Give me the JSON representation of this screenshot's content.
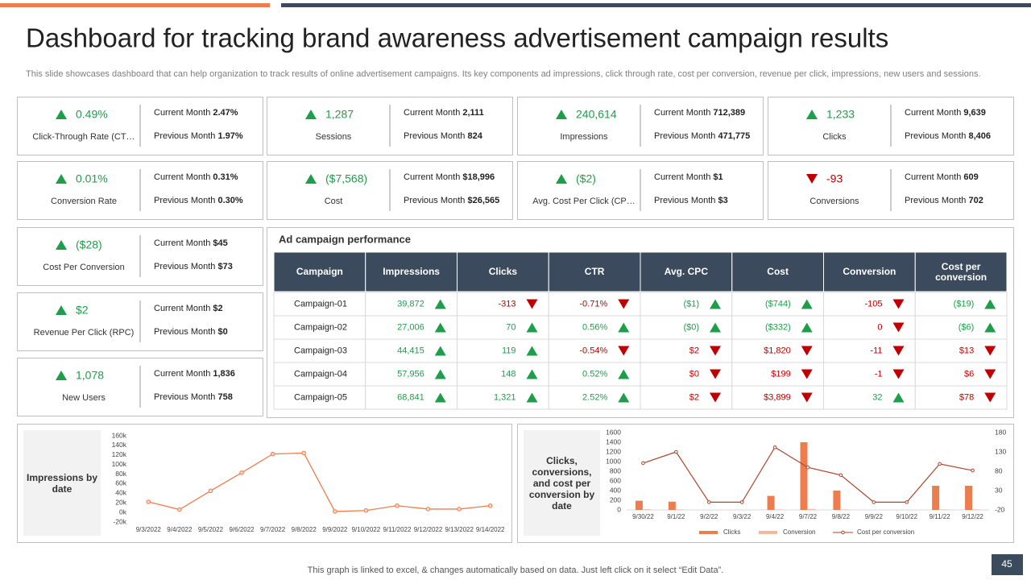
{
  "header": {
    "title": "Dashboard for tracking brand awareness advertisement campaign results",
    "subtitle": "This slide showcases dashboard that can help organization to track results of online advertisement campaigns. Its key components ad impressions, click through rate, cost per conversion, revenue per click, impressions, new users and sessions."
  },
  "kpi_labels": {
    "current": "Current Month",
    "previous": "Previous Month"
  },
  "colors": {
    "up": "#1e9e4a",
    "down": "#c00000"
  },
  "kpis": [
    {
      "value": "0.49%",
      "trend": "up",
      "label": "Click-Through Rate (CT…",
      "current": "2.47%",
      "previous": "1.97%"
    },
    {
      "value": "1,287",
      "trend": "up",
      "label": "Sessions",
      "current": "2,111",
      "previous": "824"
    },
    {
      "value": "240,614",
      "trend": "up",
      "label": "Impressions",
      "current": "712,389",
      "previous": "471,775"
    },
    {
      "value": "1,233",
      "trend": "up",
      "label": "Clicks",
      "current": "9,639",
      "previous": "8,406"
    },
    {
      "value": "0.01%",
      "trend": "up",
      "label": "Conversion Rate",
      "current": "0.31%",
      "previous": "0.30%"
    },
    {
      "value": "($7,568)",
      "trend": "up",
      "label": "Cost",
      "current": "$18,996",
      "previous": "$26,565"
    },
    {
      "value": "($2)",
      "trend": "up",
      "label": "Avg. Cost Per Click (CP…",
      "current": "$1",
      "previous": "$3"
    },
    {
      "value": "-93",
      "trend": "down",
      "label": "Conversions",
      "current": "609",
      "previous": "702"
    },
    {
      "value": "($28)",
      "trend": "up",
      "label": "Cost Per Conversion",
      "current": "$45",
      "previous": "$73"
    },
    {
      "value": "$2",
      "trend": "up",
      "label": "Revenue Per Click (RPC)",
      "current": "$2",
      "previous": "$0"
    },
    {
      "value": "1,078",
      "trend": "up",
      "label": "New Users",
      "current": "1,836",
      "previous": "758"
    }
  ],
  "table": {
    "title": "Ad campaign performance",
    "columns": [
      "Campaign",
      "Impressions",
      "Clicks",
      "CTR",
      "Avg. CPC",
      "Cost",
      "Conversion",
      "Cost per conversion"
    ],
    "rows": [
      {
        "campaign": "Campaign-01",
        "cells": [
          {
            "text": "39,872",
            "trend": "up"
          },
          {
            "text": "-313",
            "trend": "down"
          },
          {
            "text": "-0.71%",
            "trend": "down"
          },
          {
            "text": "($1)",
            "trend": "up"
          },
          {
            "text": "($744)",
            "trend": "up"
          },
          {
            "text": "-105",
            "trend": "down"
          },
          {
            "text": "($19)",
            "trend": "up"
          }
        ]
      },
      {
        "campaign": "Campaign-02",
        "cells": [
          {
            "text": "27,006",
            "trend": "up"
          },
          {
            "text": "70",
            "trend": "up"
          },
          {
            "text": "0.56%",
            "trend": "up"
          },
          {
            "text": "($0)",
            "trend": "up"
          },
          {
            "text": "($332)",
            "trend": "up"
          },
          {
            "text": "0",
            "trend": "down"
          },
          {
            "text": "($6)",
            "trend": "up"
          }
        ]
      },
      {
        "campaign": "Campaign-03",
        "cells": [
          {
            "text": "44,415",
            "trend": "up"
          },
          {
            "text": "119",
            "trend": "up"
          },
          {
            "text": "-0.54%",
            "trend": "down"
          },
          {
            "text": "$2",
            "trend": "down"
          },
          {
            "text": "$1,820",
            "trend": "down"
          },
          {
            "text": "-11",
            "trend": "down"
          },
          {
            "text": "$13",
            "trend": "down"
          }
        ]
      },
      {
        "campaign": "Campaign-04",
        "cells": [
          {
            "text": "57,956",
            "trend": "up"
          },
          {
            "text": "148",
            "trend": "up"
          },
          {
            "text": "0.52%",
            "trend": "up"
          },
          {
            "text": "$0",
            "trend": "down"
          },
          {
            "text": "$199",
            "trend": "down"
          },
          {
            "text": "-1",
            "trend": "down"
          },
          {
            "text": "$6",
            "trend": "down"
          }
        ]
      },
      {
        "campaign": "Campaign-05",
        "cells": [
          {
            "text": "68,841",
            "trend": "up"
          },
          {
            "text": "1,321",
            "trend": "up"
          },
          {
            "text": "2.52%",
            "trend": "up"
          },
          {
            "text": "$2",
            "trend": "down"
          },
          {
            "text": "$3,899",
            "trend": "down"
          },
          {
            "text": "32",
            "trend": "up"
          },
          {
            "text": "$78",
            "trend": "down"
          }
        ]
      }
    ]
  },
  "chart_data": [
    {
      "type": "line",
      "title": "Impressions by date",
      "color": "#ed7d4f",
      "categories": [
        "9/3/2022",
        "9/4/2022",
        "9/5/2022",
        "9/6/2022",
        "9/7/2022",
        "9/8/2022",
        "9/9/2022",
        "9/10/2022",
        "9/11/2022",
        "9/12/2022",
        "9/13/2022",
        "9/14/2022"
      ],
      "values": [
        22000,
        6000,
        45000,
        83000,
        122000,
        124000,
        2000,
        4000,
        14000,
        7000,
        7000,
        14000
      ],
      "ylim": [
        -20000,
        160000
      ],
      "yticks": [
        {
          "value": -20000,
          "label": "-20k"
        },
        {
          "value": 0,
          "label": "0k"
        },
        {
          "value": 20000,
          "label": "20k"
        },
        {
          "value": 40000,
          "label": "40k"
        },
        {
          "value": 60000,
          "label": "60k"
        },
        {
          "value": 80000,
          "label": "80k"
        },
        {
          "value": 100000,
          "label": "100k"
        },
        {
          "value": 120000,
          "label": "120k"
        },
        {
          "value": 140000,
          "label": "140k"
        },
        {
          "value": 160000,
          "label": "160k"
        }
      ]
    },
    {
      "type": "combo",
      "title": "Clicks, conversions, and cost per conversion by date",
      "categories": [
        "9/30/22",
        "9/1/22",
        "9/2/22",
        "9/3/22",
        "9/4/22",
        "9/7/22",
        "9/8/22",
        "9/9/22",
        "9/10/22",
        "9/11/22",
        "9/12/22"
      ],
      "series": [
        {
          "name": "Clicks",
          "kind": "bar",
          "color": "#ed7d4f",
          "values": [
            190,
            170,
            0,
            0,
            290,
            1400,
            400,
            0,
            0,
            500,
            500
          ]
        },
        {
          "name": "Conversion",
          "kind": "bar",
          "color": "#f4b8a0",
          "values": [
            15,
            10,
            0,
            0,
            10,
            20,
            10,
            0,
            0,
            10,
            10
          ]
        },
        {
          "name": "Cost per conversion",
          "kind": "line",
          "axis": "y2",
          "color": "#a9472e",
          "values": [
            101,
            130,
            0,
            0,
            142,
            90,
            70,
            0,
            0,
            99,
            82
          ]
        }
      ],
      "ylim": [
        0,
        1600
      ],
      "yticks": [
        0,
        200,
        400,
        600,
        800,
        1000,
        1200,
        1400,
        1600
      ],
      "y2lim": [
        -20,
        180
      ],
      "y2ticks": [
        -20,
        30,
        80,
        130,
        180
      ]
    }
  ],
  "footer": {
    "note": "This graph is linked to excel, & changes automatically based on data. Just left click on it select “Edit Data”.",
    "page": "45"
  }
}
